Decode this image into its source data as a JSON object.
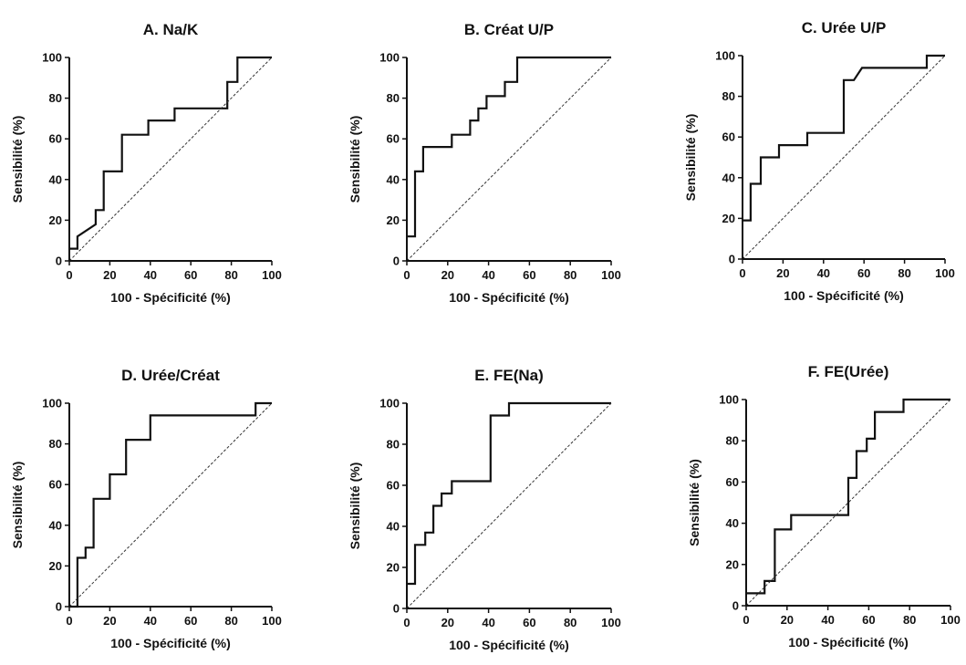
{
  "chart_data": [
    {
      "type": "line",
      "title": "A. Na/K",
      "xlabel": "100 - Spécificité (%)",
      "ylabel": "Sensibilité (%)",
      "xlim": [
        0,
        100
      ],
      "ylim": [
        0,
        100
      ],
      "xticks": [
        "0",
        "20",
        "40",
        "60",
        "80",
        "100"
      ],
      "yticks": [
        "0",
        "20",
        "40",
        "60",
        "80",
        "100"
      ],
      "grid": false,
      "series": [
        {
          "values_xy": [
            [
              0,
              6
            ],
            [
              4,
              6
            ],
            [
              4,
              12
            ],
            [
              13,
              18
            ],
            [
              13,
              25
            ],
            [
              17,
              25
            ],
            [
              17,
              44
            ],
            [
              26,
              44
            ],
            [
              26,
              62
            ],
            [
              39,
              62
            ],
            [
              39,
              69
            ],
            [
              52,
              69
            ],
            [
              52,
              75
            ],
            [
              78,
              75
            ],
            [
              78,
              88
            ],
            [
              83,
              88
            ],
            [
              83,
              100
            ],
            [
              100,
              100
            ]
          ]
        },
        {
          "style": "dashed",
          "values_xy": [
            [
              0,
              0
            ],
            [
              100,
              100
            ]
          ]
        }
      ]
    },
    {
      "type": "line",
      "title": "B. Créat U/P",
      "xlabel": "100 - Spécificité (%)",
      "ylabel": "Sensibilité (%)",
      "xlim": [
        0,
        100
      ],
      "ylim": [
        0,
        100
      ],
      "xticks": [
        "0",
        "20",
        "40",
        "60",
        "80",
        "100"
      ],
      "yticks": [
        "0",
        "20",
        "40",
        "60",
        "80",
        "100"
      ],
      "grid": false,
      "series": [
        {
          "values_xy": [
            [
              0,
              12
            ],
            [
              4,
              12
            ],
            [
              4,
              44
            ],
            [
              8,
              44
            ],
            [
              8,
              56
            ],
            [
              22,
              56
            ],
            [
              22,
              62
            ],
            [
              31,
              62
            ],
            [
              31,
              69
            ],
            [
              35,
              69
            ],
            [
              35,
              75
            ],
            [
              39,
              75
            ],
            [
              39,
              81
            ],
            [
              48,
              81
            ],
            [
              48,
              88
            ],
            [
              54,
              88
            ],
            [
              54,
              100
            ],
            [
              100,
              100
            ]
          ]
        },
        {
          "style": "dashed",
          "values_xy": [
            [
              0,
              0
            ],
            [
              100,
              100
            ]
          ]
        }
      ]
    },
    {
      "type": "line",
      "title": "C. Urée U/P",
      "xlabel": "100 - Spécificité (%)",
      "ylabel": "Sensibilité (%)",
      "xlim": [
        0,
        100
      ],
      "ylim": [
        0,
        100
      ],
      "xticks": [
        "0",
        "20",
        "40",
        "60",
        "80",
        "100"
      ],
      "yticks": [
        "0",
        "20",
        "40",
        "60",
        "80",
        "100"
      ],
      "grid": false,
      "series": [
        {
          "values_xy": [
            [
              0,
              19
            ],
            [
              4,
              19
            ],
            [
              4,
              37
            ],
            [
              9,
              37
            ],
            [
              9,
              50
            ],
            [
              18,
              50
            ],
            [
              18,
              56
            ],
            [
              32,
              56
            ],
            [
              32,
              62
            ],
            [
              50,
              62
            ],
            [
              50,
              88
            ],
            [
              55,
              88
            ],
            [
              59,
              94
            ],
            [
              91,
              94
            ],
            [
              91,
              100
            ],
            [
              100,
              100
            ]
          ]
        },
        {
          "style": "dashed",
          "values_xy": [
            [
              0,
              0
            ],
            [
              100,
              100
            ]
          ]
        }
      ]
    },
    {
      "type": "line",
      "title": "D. Urée/Créat",
      "xlabel": "100 - Spécificité (%)",
      "ylabel": "Sensibilité (%)",
      "xlim": [
        0,
        100
      ],
      "ylim": [
        0,
        100
      ],
      "xticks": [
        "0",
        "20",
        "40",
        "60",
        "80",
        "100"
      ],
      "yticks": [
        "0",
        "20",
        "40",
        "60",
        "80",
        "100"
      ],
      "grid": false,
      "series": [
        {
          "values_xy": [
            [
              0,
              0
            ],
            [
              4,
              0
            ],
            [
              4,
              24
            ],
            [
              8,
              24
            ],
            [
              8,
              29
            ],
            [
              12,
              29
            ],
            [
              12,
              53
            ],
            [
              20,
              53
            ],
            [
              20,
              65
            ],
            [
              28,
              65
            ],
            [
              28,
              82
            ],
            [
              40,
              82
            ],
            [
              40,
              94
            ],
            [
              92,
              94
            ],
            [
              92,
              100
            ],
            [
              100,
              100
            ]
          ]
        },
        {
          "style": "dashed",
          "values_xy": [
            [
              0,
              0
            ],
            [
              100,
              100
            ]
          ]
        }
      ]
    },
    {
      "type": "line",
      "title": "E. FE(Na)",
      "xlabel": "100 - Spécificité (%)",
      "ylabel": "Sensibilité (%)",
      "xlim": [
        0,
        100
      ],
      "ylim": [
        0,
        100
      ],
      "xticks": [
        "0",
        "20",
        "40",
        "60",
        "80",
        "100"
      ],
      "yticks": [
        "0",
        "20",
        "40",
        "60",
        "80",
        "100"
      ],
      "grid": false,
      "series": [
        {
          "values_xy": [
            [
              0,
              12
            ],
            [
              4,
              12
            ],
            [
              4,
              31
            ],
            [
              9,
              31
            ],
            [
              9,
              37
            ],
            [
              13,
              37
            ],
            [
              13,
              50
            ],
            [
              17,
              50
            ],
            [
              17,
              56
            ],
            [
              22,
              56
            ],
            [
              22,
              62
            ],
            [
              41,
              62
            ],
            [
              41,
              94
            ],
            [
              50,
              94
            ],
            [
              50,
              100
            ],
            [
              100,
              100
            ]
          ]
        },
        {
          "style": "dashed",
          "values_xy": [
            [
              0,
              0
            ],
            [
              100,
              100
            ]
          ]
        }
      ]
    },
    {
      "type": "line",
      "title": "F. FE(Urée)",
      "xlabel": "100 - Spécificité (%)",
      "ylabel": "Sensibilité (%)",
      "xlim": [
        0,
        100
      ],
      "ylim": [
        0,
        100
      ],
      "xticks": [
        "0",
        "20",
        "40",
        "60",
        "80",
        "100"
      ],
      "yticks": [
        "0",
        "20",
        "40",
        "60",
        "80",
        "100"
      ],
      "grid": false,
      "series": [
        {
          "values_xy": [
            [
              0,
              6
            ],
            [
              9,
              6
            ],
            [
              9,
              12
            ],
            [
              14,
              12
            ],
            [
              14,
              37
            ],
            [
              22,
              37
            ],
            [
              22,
              44
            ],
            [
              50,
              44
            ],
            [
              50,
              62
            ],
            [
              54,
              62
            ],
            [
              54,
              75
            ],
            [
              59,
              75
            ],
            [
              59,
              81
            ],
            [
              63,
              81
            ],
            [
              63,
              94
            ],
            [
              77,
              94
            ],
            [
              77,
              100
            ],
            [
              100,
              100
            ]
          ]
        },
        {
          "style": "dashed",
          "values_xy": [
            [
              0,
              0
            ],
            [
              100,
              100
            ]
          ]
        }
      ]
    }
  ]
}
